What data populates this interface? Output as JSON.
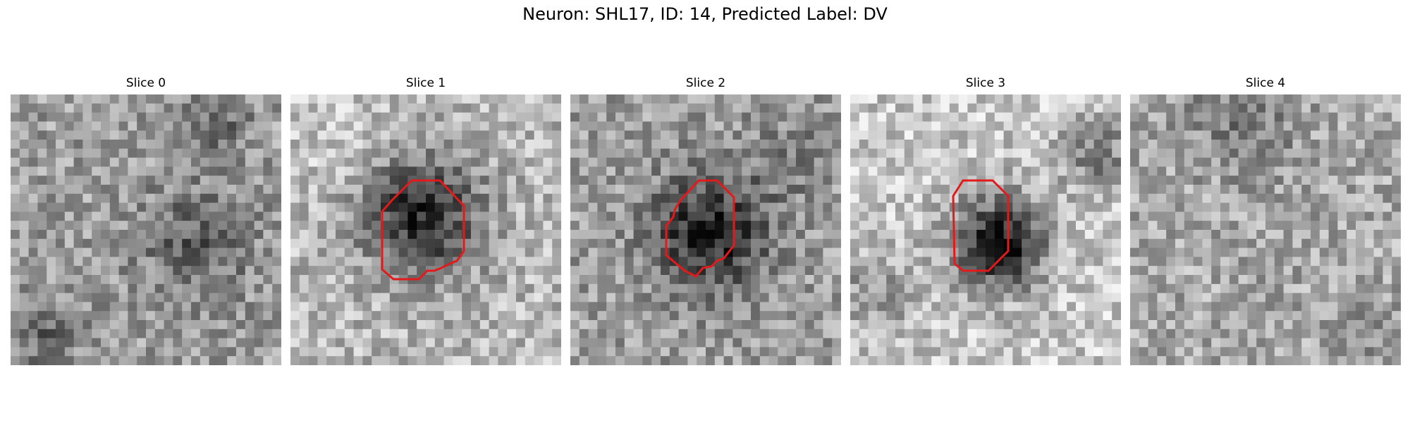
{
  "figure": {
    "title": "Neuron: SHL17, ID: 14, Predicted Label: DV"
  },
  "panels": [
    {
      "title": "Slice 0",
      "has_contour": false,
      "contour_color": "#e31a1c"
    },
    {
      "title": "Slice 1",
      "has_contour": true,
      "contour_color": "#e31a1c"
    },
    {
      "title": "Slice 2",
      "has_contour": true,
      "contour_color": "#e31a1c"
    },
    {
      "title": "Slice 3",
      "has_contour": true,
      "contour_color": "#e31a1c"
    },
    {
      "title": "Slice 4",
      "has_contour": false,
      "contour_color": "#e31a1c"
    }
  ],
  "colormap": "gray"
}
